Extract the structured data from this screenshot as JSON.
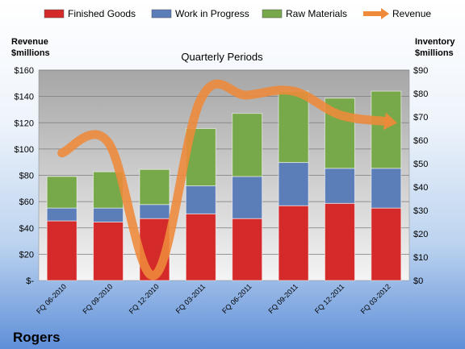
{
  "chart_data": {
    "type": "bar",
    "stacked": true,
    "title": "Quarterly Periods",
    "company": "Rogers",
    "categories": [
      "FQ 06-2010",
      "FQ 09-2010",
      "FQ 12-2010",
      "FQ 03-2011",
      "FQ 06-2011",
      "FQ 09-2011",
      "FQ 12-2011",
      "FQ 03-2012"
    ],
    "left_axis": {
      "label_line1": "Revenue",
      "label_line2": "$millions",
      "ylim": [
        0,
        160
      ],
      "ticks": [
        "$-",
        "$20",
        "$40",
        "$60",
        "$80",
        "$100",
        "$120",
        "$140",
        "$160"
      ]
    },
    "right_axis": {
      "label_line1": "Inventory",
      "label_line2": "$millions",
      "ylim": [
        0,
        90
      ],
      "ticks": [
        "$0",
        "$10",
        "$20",
        "$30",
        "$40",
        "$50",
        "$60",
        "$70",
        "$80",
        "$90"
      ]
    },
    "series": [
      {
        "name": "Finished Goods",
        "axis": "right",
        "color": "#d42a2a",
        "values": [
          25.5,
          25,
          26.5,
          28.5,
          26.5,
          32,
          33,
          31
        ]
      },
      {
        "name": "Work in Progress",
        "axis": "right",
        "color": "#5b7db8",
        "values": [
          5.5,
          6,
          6,
          12,
          18,
          18.5,
          15,
          17
        ]
      },
      {
        "name": "Raw Materials",
        "axis": "right",
        "color": "#77a84a",
        "values": [
          13.5,
          15.5,
          15,
          24.5,
          27,
          30.5,
          30,
          33
        ]
      },
      {
        "name": "Revenue",
        "axis": "left",
        "type": "line",
        "color": "#ee8a3a",
        "values": [
          97,
          105,
          4,
          138,
          141,
          144,
          126,
          121
        ]
      }
    ],
    "grid": true,
    "legend": "top"
  }
}
